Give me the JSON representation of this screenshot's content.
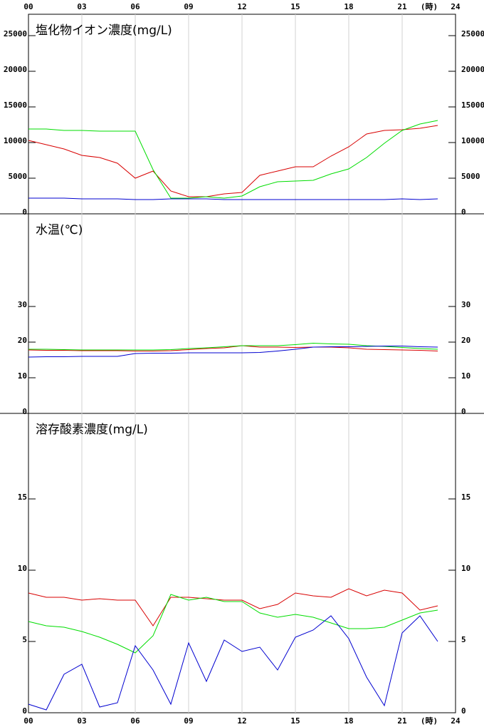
{
  "x_axis": {
    "xlim": [
      0,
      24
    ],
    "xticks": [
      {
        "value": 0,
        "label": "00"
      },
      {
        "value": 3,
        "label": "03"
      },
      {
        "value": 6,
        "label": "06"
      },
      {
        "value": 9,
        "label": "09"
      },
      {
        "value": 12,
        "label": "12"
      },
      {
        "value": 15,
        "label": "15"
      },
      {
        "value": 18,
        "label": "18"
      },
      {
        "value": 21,
        "label": "21"
      },
      24
    ],
    "unit": "(時)",
    "grid": true
  },
  "chart_data": [
    {
      "type": "line",
      "title": "塩化物イオン濃度(mg/L)",
      "x": [
        0,
        1,
        2,
        3,
        4,
        5,
        6,
        7,
        8,
        9,
        10,
        11,
        12,
        13,
        14,
        15,
        16,
        17,
        18,
        19,
        20,
        21,
        22,
        23
      ],
      "ylim": [
        0,
        28000
      ],
      "yticks": [
        0,
        5000,
        10000,
        15000,
        20000,
        25000
      ],
      "series": [
        {
          "color": "#d80000",
          "values": [
            10300,
            9700,
            9100,
            8200,
            7900,
            7100,
            5000,
            6000,
            3200,
            2400,
            2400,
            2800,
            3000,
            5400,
            6000,
            6600,
            6600,
            8100,
            9400,
            11200,
            11700,
            11800,
            12000,
            12400
          ]
        },
        {
          "color": "#00dd00",
          "values": [
            11900,
            11900,
            11700,
            11700,
            11600,
            11600,
            11600,
            6200,
            2200,
            2200,
            2400,
            2200,
            2500,
            3800,
            4500,
            4600,
            4700,
            5600,
            6300,
            7900,
            9900,
            11700,
            12600,
            13100
          ]
        },
        {
          "color": "#0000d0",
          "values": [
            2200,
            2200,
            2200,
            2100,
            2100,
            2100,
            2000,
            2000,
            2100,
            2100,
            2100,
            2000,
            2000,
            2000,
            2000,
            2000,
            2000,
            2000,
            2000,
            2000,
            2000,
            2100,
            2000,
            2100
          ]
        }
      ]
    },
    {
      "type": "line",
      "title": "水温(℃)",
      "x": [
        0,
        1,
        2,
        3,
        4,
        5,
        6,
        7,
        8,
        9,
        10,
        11,
        12,
        13,
        14,
        15,
        16,
        17,
        18,
        19,
        20,
        21,
        22,
        23
      ],
      "ylim": [
        0,
        56
      ],
      "yticks": [
        0,
        10,
        20,
        30
      ],
      "series": [
        {
          "color": "#d80000",
          "values": [
            17.8,
            17.7,
            17.7,
            17.6,
            17.6,
            17.6,
            17.5,
            17.5,
            17.6,
            17.9,
            18.2,
            18.4,
            19.0,
            18.6,
            18.6,
            18.5,
            18.6,
            18.6,
            18.4,
            18.0,
            17.9,
            17.8,
            17.7,
            17.5
          ]
        },
        {
          "color": "#00dd00",
          "values": [
            18.0,
            18.0,
            17.9,
            17.8,
            17.8,
            17.8,
            17.8,
            17.8,
            17.9,
            18.2,
            18.4,
            18.7,
            19.0,
            19.0,
            19.0,
            19.3,
            19.7,
            19.5,
            19.4,
            19.0,
            18.8,
            18.5,
            18.2,
            18.0
          ]
        },
        {
          "color": "#0000d0",
          "values": [
            15.8,
            15.9,
            15.9,
            16.0,
            16.0,
            16.0,
            16.8,
            16.9,
            16.9,
            17.0,
            17.0,
            17.0,
            17.0,
            17.1,
            17.5,
            18.0,
            18.6,
            18.7,
            18.7,
            18.8,
            18.9,
            18.9,
            18.7,
            18.6
          ]
        }
      ]
    },
    {
      "type": "line",
      "title": "溶存酸素濃度(mg/L)",
      "x": [
        0,
        1,
        2,
        3,
        4,
        5,
        6,
        7,
        8,
        9,
        10,
        11,
        12,
        13,
        14,
        15,
        16,
        17,
        18,
        19,
        20,
        21,
        22,
        23
      ],
      "ylim": [
        0,
        21
      ],
      "yticks": [
        0,
        5,
        10,
        15
      ],
      "series": [
        {
          "color": "#d80000",
          "values": [
            8.4,
            8.1,
            8.1,
            7.9,
            8.0,
            7.9,
            7.9,
            6.1,
            8.1,
            8.1,
            8.0,
            7.9,
            7.9,
            7.3,
            7.6,
            8.4,
            8.2,
            8.1,
            8.7,
            8.2,
            8.6,
            8.4,
            7.2,
            7.5
          ]
        },
        {
          "color": "#00dd00",
          "values": [
            6.4,
            6.1,
            6.0,
            5.7,
            5.3,
            4.8,
            4.2,
            5.4,
            8.3,
            7.9,
            8.1,
            7.8,
            7.8,
            7.0,
            6.7,
            6.9,
            6.7,
            6.3,
            5.9,
            5.9,
            6.0,
            6.5,
            7.0,
            7.2
          ]
        },
        {
          "color": "#0000d0",
          "values": [
            0.6,
            0.2,
            2.7,
            3.4,
            0.4,
            0.7,
            4.7,
            3.0,
            0.6,
            4.9,
            2.2,
            5.1,
            4.3,
            4.6,
            3.0,
            5.3,
            5.8,
            6.8,
            5.2,
            2.5,
            0.5,
            5.6,
            6.8,
            5.0
          ]
        }
      ]
    }
  ]
}
